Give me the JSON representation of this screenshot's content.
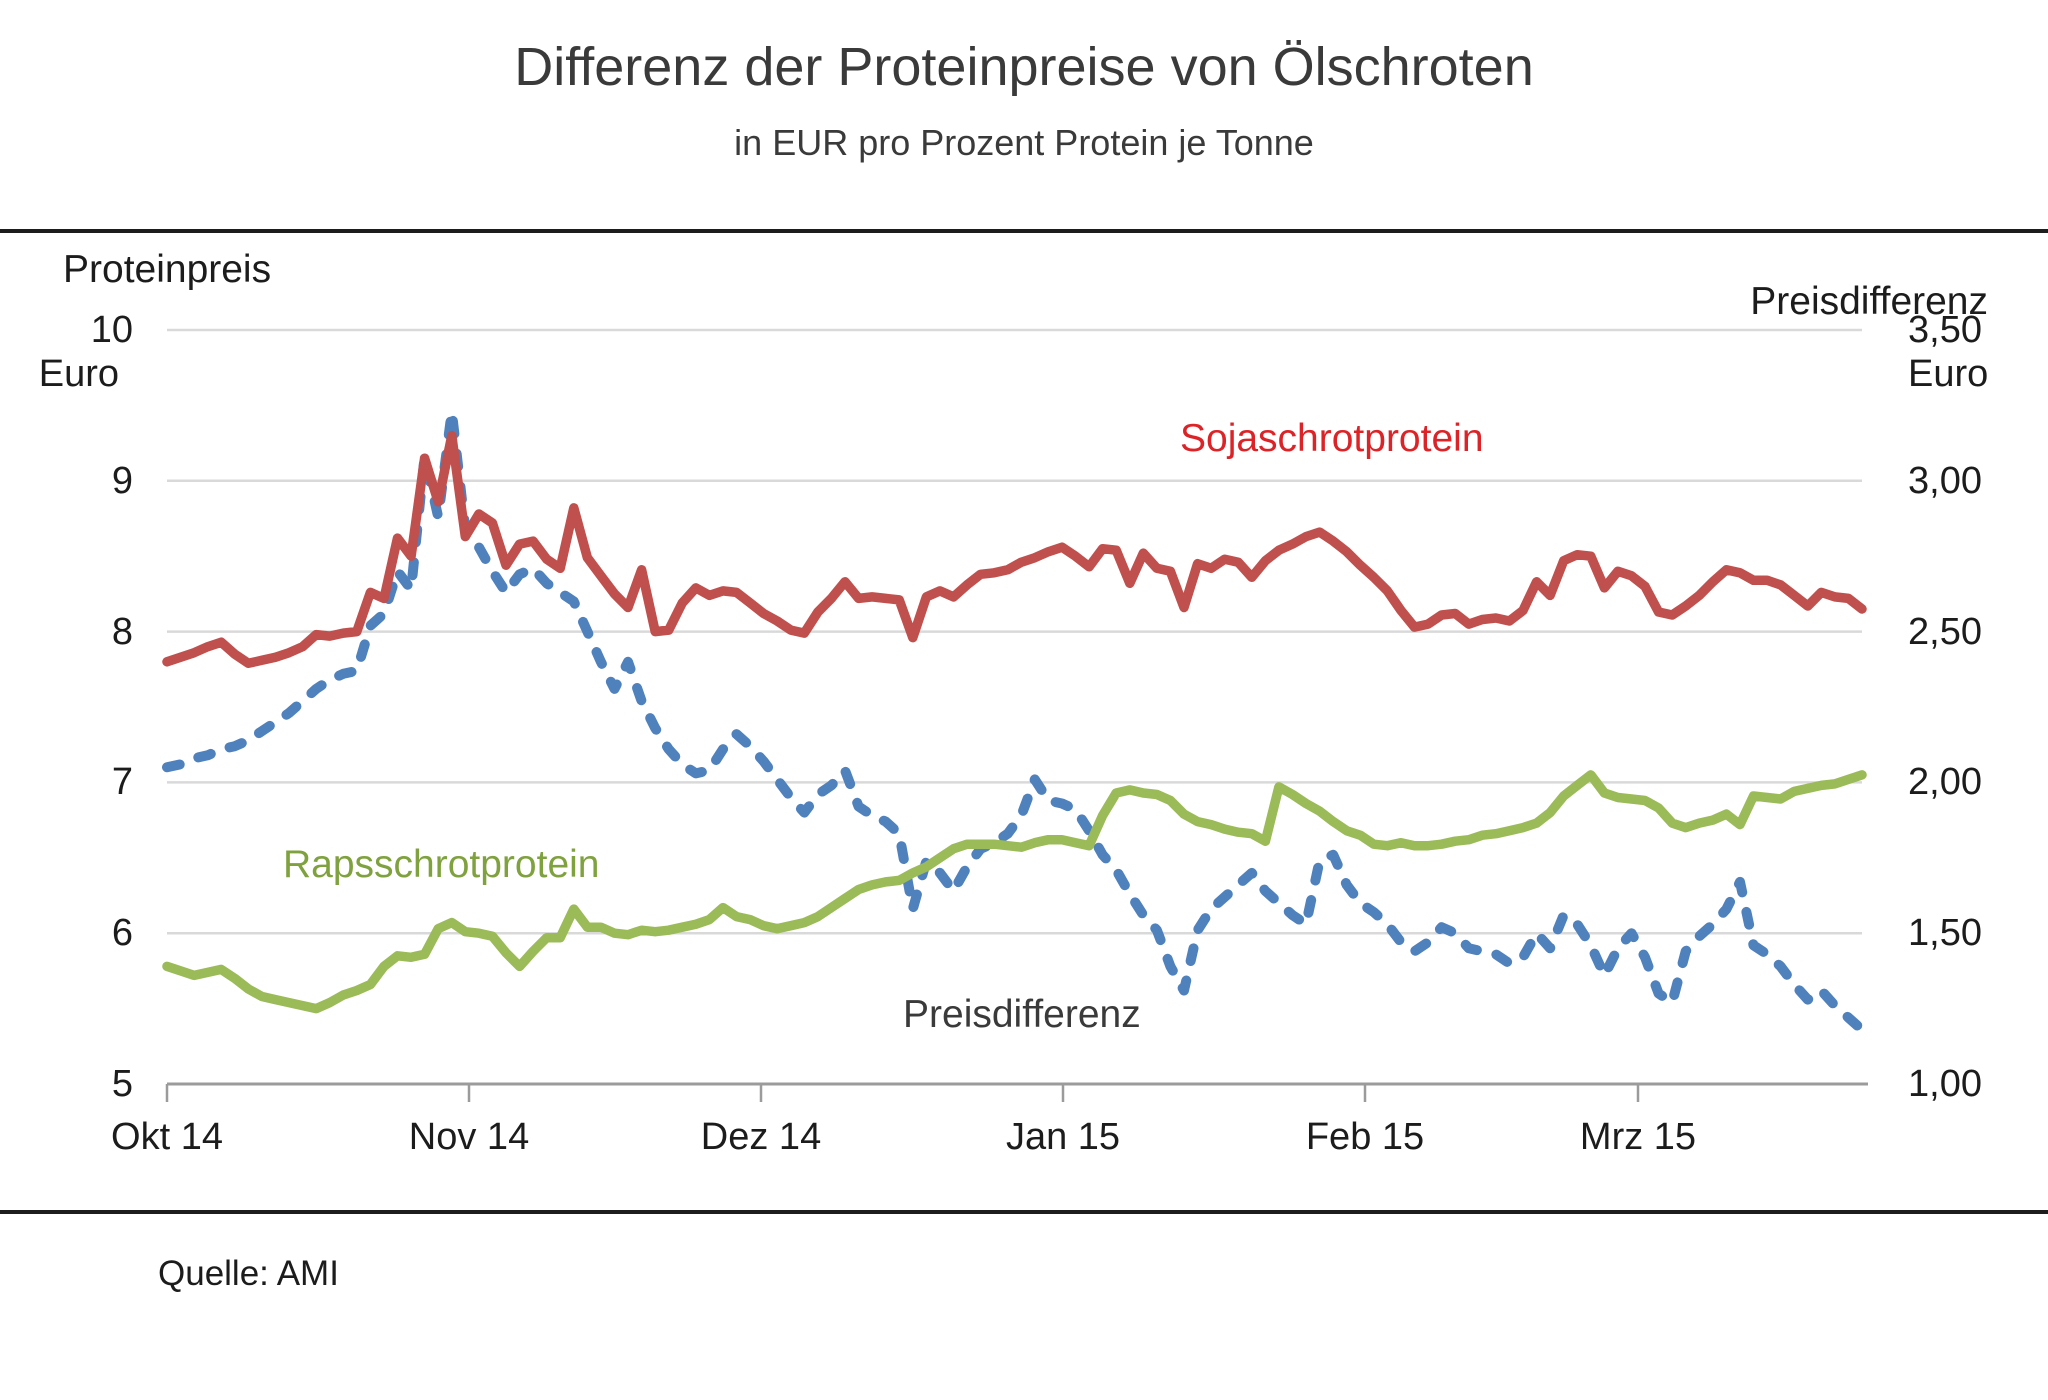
{
  "title": "Differenz der Proteinpreise von Ölschroten",
  "subtitle": "in EUR pro Prozent Protein je Tonne",
  "source": "Quelle: AMI",
  "colors": {
    "soja_line": "#C0504D",
    "raps_line": "#9BBB59",
    "diff_line": "#4F81BD",
    "soja_label": "#DC2428",
    "raps_label": "#7FA23E",
    "diff_label": "#3A3A3A",
    "gridline": "#D9D9D9",
    "axis": "#9B9B9B",
    "rule": "#1D1D1D"
  },
  "chart_data": {
    "type": "line",
    "title": "Differenz der Proteinpreise von Ölschroten",
    "subtitle": "in EUR pro Prozent Protein je Tonne",
    "grid": "horizontal-only",
    "left_axis": {
      "label": "Proteinpreis",
      "unit": "Euro",
      "ylim": [
        5,
        10
      ],
      "ticks": [
        "10",
        "9",
        "8",
        "7",
        "6",
        "5"
      ]
    },
    "right_axis": {
      "label": "Preisdifferenz",
      "unit": "Euro",
      "ylim": [
        1.0,
        3.5
      ],
      "ticks": [
        "3,50",
        "3,00",
        "2,50",
        "2,00",
        "1,50",
        "1,00"
      ]
    },
    "x_axis": {
      "tick_labels": [
        "Okt 14",
        "Nov 14",
        "Dez 14",
        "Jan 15",
        "Feb 15",
        "Mrz 15"
      ],
      "n_points": 126
    },
    "series": [
      {
        "name": "Sojaschrotprotein",
        "axis": "left",
        "style": "solid",
        "color": "#C0504D",
        "values": [
          7.8,
          7.83,
          7.86,
          7.9,
          7.93,
          7.85,
          7.79,
          7.81,
          7.83,
          7.86,
          7.9,
          7.98,
          7.97,
          7.99,
          8.0,
          8.26,
          8.22,
          8.62,
          8.5,
          9.15,
          8.86,
          9.3,
          8.63,
          8.78,
          8.72,
          8.44,
          8.58,
          8.6,
          8.48,
          8.42,
          8.82,
          8.49,
          8.37,
          8.25,
          8.16,
          8.41,
          8.0,
          8.01,
          8.19,
          8.29,
          8.24,
          8.27,
          8.26,
          8.19,
          8.12,
          8.07,
          8.01,
          7.99,
          8.13,
          8.22,
          8.33,
          8.22,
          8.23,
          8.22,
          8.21,
          7.96,
          8.23,
          8.27,
          8.23,
          8.31,
          8.38,
          8.39,
          8.41,
          8.46,
          8.49,
          8.53,
          8.56,
          8.5,
          8.43,
          8.55,
          8.54,
          8.32,
          8.52,
          8.42,
          8.4,
          8.16,
          8.45,
          8.42,
          8.48,
          8.46,
          8.36,
          8.47,
          8.54,
          8.58,
          8.63,
          8.66,
          8.6,
          8.53,
          8.44,
          8.36,
          8.27,
          8.14,
          8.03,
          8.05,
          8.11,
          8.12,
          8.05,
          8.08,
          8.09,
          8.07,
          8.14,
          8.33,
          8.24,
          8.47,
          8.51,
          8.5,
          8.29,
          8.4,
          8.37,
          8.3,
          8.13,
          8.11,
          8.17,
          8.24,
          8.33,
          8.41,
          8.39,
          8.34,
          8.34,
          8.31,
          8.24,
          8.17,
          8.26,
          8.23,
          8.22,
          8.15
        ]
      },
      {
        "name": "Rapsschrotprotein",
        "axis": "left",
        "style": "solid",
        "color": "#9BBB59",
        "values": [
          5.78,
          5.75,
          5.72,
          5.74,
          5.76,
          5.7,
          5.63,
          5.58,
          5.56,
          5.54,
          5.52,
          5.5,
          5.54,
          5.59,
          5.62,
          5.66,
          5.78,
          5.85,
          5.84,
          5.86,
          6.03,
          6.07,
          6.01,
          6.0,
          5.98,
          5.87,
          5.78,
          5.88,
          5.97,
          5.97,
          6.16,
          6.04,
          6.04,
          6.0,
          5.99,
          6.02,
          6.01,
          6.02,
          6.04,
          6.06,
          6.09,
          6.17,
          6.11,
          6.09,
          6.05,
          6.03,
          6.05,
          6.07,
          6.11,
          6.17,
          6.23,
          6.29,
          6.32,
          6.34,
          6.35,
          6.4,
          6.44,
          6.5,
          6.56,
          6.59,
          6.59,
          6.59,
          6.58,
          6.57,
          6.6,
          6.62,
          6.62,
          6.6,
          6.58,
          6.78,
          6.93,
          6.95,
          6.93,
          6.92,
          6.88,
          6.79,
          6.74,
          6.72,
          6.69,
          6.67,
          6.66,
          6.61,
          6.97,
          6.92,
          6.86,
          6.81,
          6.74,
          6.68,
          6.65,
          6.59,
          6.58,
          6.6,
          6.58,
          6.58,
          6.59,
          6.61,
          6.62,
          6.65,
          6.66,
          6.68,
          6.7,
          6.73,
          6.8,
          6.91,
          6.98,
          7.05,
          6.93,
          6.9,
          6.89,
          6.88,
          6.83,
          6.73,
          6.7,
          6.73,
          6.75,
          6.79,
          6.72,
          6.91,
          6.9,
          6.89,
          6.94,
          6.96,
          6.98,
          6.99,
          7.02,
          7.05
        ]
      },
      {
        "name": "Preisdifferenz",
        "axis": "right",
        "style": "dashed",
        "color": "#4F81BD",
        "values": [
          2.05,
          2.06,
          2.08,
          2.09,
          2.11,
          2.12,
          2.14,
          2.17,
          2.2,
          2.23,
          2.27,
          2.31,
          2.34,
          2.36,
          2.37,
          2.52,
          2.56,
          2.7,
          2.64,
          3.08,
          2.88,
          3.23,
          2.84,
          2.78,
          2.7,
          2.63,
          2.69,
          2.71,
          2.66,
          2.63,
          2.6,
          2.5,
          2.4,
          2.31,
          2.4,
          2.27,
          2.18,
          2.11,
          2.06,
          2.03,
          2.04,
          2.11,
          2.16,
          2.12,
          2.07,
          2.01,
          1.95,
          1.9,
          1.96,
          1.99,
          2.04,
          1.92,
          1.89,
          1.87,
          1.83,
          1.58,
          1.74,
          1.7,
          1.64,
          1.72,
          1.78,
          1.8,
          1.83,
          1.89,
          2.01,
          1.94,
          1.93,
          1.91,
          1.84,
          1.76,
          1.71,
          1.63,
          1.56,
          1.51,
          1.39,
          1.31,
          1.51,
          1.58,
          1.62,
          1.66,
          1.7,
          1.64,
          1.6,
          1.56,
          1.53,
          1.74,
          1.76,
          1.66,
          1.6,
          1.57,
          1.53,
          1.47,
          1.44,
          1.47,
          1.52,
          1.5,
          1.45,
          1.44,
          1.43,
          1.4,
          1.42,
          1.5,
          1.45,
          1.56,
          1.53,
          1.46,
          1.36,
          1.45,
          1.5,
          1.42,
          1.3,
          1.27,
          1.44,
          1.49,
          1.53,
          1.58,
          1.67,
          1.46,
          1.43,
          1.39,
          1.33,
          1.28,
          1.31,
          1.26,
          1.22,
          1.18
        ]
      }
    ],
    "series_labels": {
      "soja": "Sojaschrotprotein",
      "raps": "Rapsschrotprotein",
      "diff": "Preisdifferenz"
    },
    "legend": "none (inline series labels)"
  }
}
